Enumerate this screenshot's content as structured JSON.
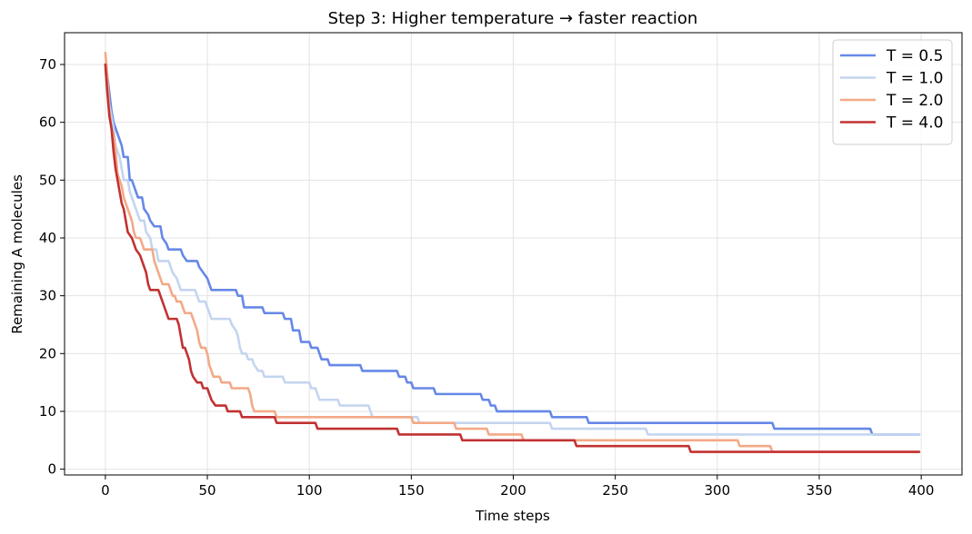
{
  "chart_data": {
    "type": "line",
    "title": "Step 3: Higher temperature → faster reaction",
    "xlabel": "Time steps",
    "ylabel": "Remaining A molecules",
    "xlim": [
      -20,
      420
    ],
    "ylim": [
      -1,
      75.5
    ],
    "xticks": [
      0,
      50,
      100,
      150,
      200,
      250,
      300,
      350,
      400
    ],
    "yticks": [
      0,
      10,
      20,
      30,
      40,
      50,
      60,
      70
    ],
    "grid": true,
    "legend_position": "top-right",
    "series": [
      {
        "name": "T = 0.5",
        "color": "#6688e8",
        "points": [
          [
            0,
            70
          ],
          [
            1,
            68
          ],
          [
            2,
            65
          ],
          [
            3,
            62
          ],
          [
            4,
            60
          ],
          [
            5,
            59
          ],
          [
            6,
            58
          ],
          [
            7,
            57
          ],
          [
            8,
            56
          ],
          [
            9,
            54
          ],
          [
            11,
            54
          ],
          [
            12,
            50
          ],
          [
            13,
            50
          ],
          [
            14,
            49
          ],
          [
            15,
            48
          ],
          [
            16,
            47
          ],
          [
            18,
            47
          ],
          [
            19,
            45
          ],
          [
            21,
            44
          ],
          [
            22,
            43
          ],
          [
            24,
            42
          ],
          [
            27,
            42
          ],
          [
            28,
            40
          ],
          [
            30,
            39
          ],
          [
            31,
            38
          ],
          [
            37,
            38
          ],
          [
            38,
            37
          ],
          [
            40,
            36
          ],
          [
            45,
            36
          ],
          [
            46,
            35
          ],
          [
            48,
            34
          ],
          [
            50,
            33
          ],
          [
            51,
            32
          ],
          [
            52,
            31
          ],
          [
            64,
            31
          ],
          [
            65,
            30
          ],
          [
            67,
            30
          ],
          [
            68,
            28
          ],
          [
            77,
            28
          ],
          [
            78,
            27
          ],
          [
            87,
            27
          ],
          [
            88,
            26
          ],
          [
            91,
            26
          ],
          [
            92,
            24
          ],
          [
            95,
            24
          ],
          [
            96,
            22
          ],
          [
            100,
            22
          ],
          [
            101,
            21
          ],
          [
            104,
            21
          ],
          [
            105,
            20
          ],
          [
            106,
            19
          ],
          [
            109,
            19
          ],
          [
            110,
            18
          ],
          [
            125,
            18
          ],
          [
            126,
            17
          ],
          [
            143,
            17
          ],
          [
            144,
            16
          ],
          [
            147,
            16
          ],
          [
            148,
            15
          ],
          [
            150,
            15
          ],
          [
            151,
            14
          ],
          [
            161,
            14
          ],
          [
            162,
            13
          ],
          [
            184,
            13
          ],
          [
            185,
            12
          ],
          [
            188,
            12
          ],
          [
            189,
            11
          ],
          [
            191,
            11
          ],
          [
            192,
            10
          ],
          [
            218,
            10
          ],
          [
            219,
            9
          ],
          [
            236,
            9
          ],
          [
            237,
            8
          ],
          [
            327,
            8
          ],
          [
            328,
            7
          ],
          [
            375,
            7
          ],
          [
            376,
            6
          ],
          [
            399,
            6
          ]
        ]
      },
      {
        "name": "T = 1.0",
        "color": "#c4d5f0",
        "points": [
          [
            0,
            69
          ],
          [
            1,
            66
          ],
          [
            2,
            63
          ],
          [
            3,
            61
          ],
          [
            4,
            59
          ],
          [
            5,
            56
          ],
          [
            6,
            55
          ],
          [
            7,
            54
          ],
          [
            8,
            52
          ],
          [
            9,
            50
          ],
          [
            11,
            50
          ],
          [
            12,
            48
          ],
          [
            13,
            47
          ],
          [
            14,
            46
          ],
          [
            15,
            45
          ],
          [
            16,
            44
          ],
          [
            17,
            43
          ],
          [
            19,
            43
          ],
          [
            20,
            41
          ],
          [
            22,
            40
          ],
          [
            23,
            38
          ],
          [
            25,
            38
          ],
          [
            26,
            36
          ],
          [
            31,
            36
          ],
          [
            32,
            35
          ],
          [
            33,
            34
          ],
          [
            35,
            33
          ],
          [
            36,
            32
          ],
          [
            37,
            31
          ],
          [
            44,
            31
          ],
          [
            45,
            30
          ],
          [
            46,
            29
          ],
          [
            49,
            29
          ],
          [
            50,
            28
          ],
          [
            51,
            27
          ],
          [
            52,
            26
          ],
          [
            61,
            26
          ],
          [
            62,
            25
          ],
          [
            64,
            24
          ],
          [
            65,
            23
          ],
          [
            66,
            21
          ],
          [
            67,
            20
          ],
          [
            69,
            20
          ],
          [
            70,
            19
          ],
          [
            72,
            19
          ],
          [
            73,
            18
          ],
          [
            75,
            17
          ],
          [
            77,
            17
          ],
          [
            78,
            16
          ],
          [
            87,
            16
          ],
          [
            88,
            15
          ],
          [
            100,
            15
          ],
          [
            101,
            14
          ],
          [
            103,
            14
          ],
          [
            104,
            13
          ],
          [
            105,
            12
          ],
          [
            114,
            12
          ],
          [
            115,
            11
          ],
          [
            129,
            11
          ],
          [
            130,
            10
          ],
          [
            131,
            9
          ],
          [
            153,
            9
          ],
          [
            154,
            8
          ],
          [
            218,
            8
          ],
          [
            219,
            7
          ],
          [
            265,
            7
          ],
          [
            266,
            6
          ],
          [
            399,
            6
          ]
        ]
      },
      {
        "name": "T = 2.0",
        "color": "#f3a987",
        "points": [
          [
            0,
            72
          ],
          [
            1,
            68
          ],
          [
            2,
            62
          ],
          [
            3,
            59
          ],
          [
            4,
            58
          ],
          [
            5,
            55
          ],
          [
            6,
            51
          ],
          [
            8,
            49
          ],
          [
            9,
            47
          ],
          [
            10,
            46
          ],
          [
            11,
            45
          ],
          [
            12,
            44
          ],
          [
            13,
            43
          ],
          [
            14,
            41
          ],
          [
            15,
            40
          ],
          [
            17,
            40
          ],
          [
            18,
            39
          ],
          [
            19,
            38
          ],
          [
            23,
            38
          ],
          [
            24,
            36
          ],
          [
            26,
            34
          ],
          [
            27,
            33
          ],
          [
            28,
            32
          ],
          [
            31,
            32
          ],
          [
            32,
            31
          ],
          [
            33,
            30
          ],
          [
            34,
            30
          ],
          [
            35,
            29
          ],
          [
            37,
            29
          ],
          [
            38,
            28
          ],
          [
            39,
            27
          ],
          [
            42,
            27
          ],
          [
            43,
            26
          ],
          [
            45,
            24
          ],
          [
            46,
            22
          ],
          [
            47,
            21
          ],
          [
            49,
            21
          ],
          [
            50,
            20
          ],
          [
            51,
            18
          ],
          [
            52,
            17
          ],
          [
            53,
            16
          ],
          [
            56,
            16
          ],
          [
            57,
            15
          ],
          [
            61,
            15
          ],
          [
            62,
            14
          ],
          [
            70,
            14
          ],
          [
            71,
            13
          ],
          [
            72,
            11
          ],
          [
            73,
            10
          ],
          [
            83,
            10
          ],
          [
            84,
            9
          ],
          [
            150,
            9
          ],
          [
            151,
            8
          ],
          [
            171,
            8
          ],
          [
            172,
            7
          ],
          [
            187,
            7
          ],
          [
            188,
            6
          ],
          [
            204,
            6
          ],
          [
            205,
            5
          ],
          [
            310,
            5
          ],
          [
            311,
            4
          ],
          [
            326,
            4
          ],
          [
            327,
            3
          ],
          [
            399,
            3
          ]
        ]
      },
      {
        "name": "T = 4.0",
        "color": "#c23232",
        "points": [
          [
            0,
            70
          ],
          [
            1,
            65
          ],
          [
            2,
            61
          ],
          [
            3,
            59
          ],
          [
            4,
            55
          ],
          [
            5,
            52
          ],
          [
            6,
            50
          ],
          [
            7,
            48
          ],
          [
            8,
            46
          ],
          [
            9,
            45
          ],
          [
            10,
            43
          ],
          [
            11,
            41
          ],
          [
            13,
            40
          ],
          [
            15,
            38
          ],
          [
            17,
            37
          ],
          [
            19,
            35
          ],
          [
            20,
            34
          ],
          [
            21,
            32
          ],
          [
            22,
            31
          ],
          [
            26,
            31
          ],
          [
            27,
            30
          ],
          [
            29,
            28
          ],
          [
            30,
            27
          ],
          [
            31,
            26
          ],
          [
            35,
            26
          ],
          [
            36,
            25
          ],
          [
            37,
            23
          ],
          [
            38,
            21
          ],
          [
            39,
            21
          ],
          [
            40,
            20
          ],
          [
            41,
            19
          ],
          [
            42,
            17
          ],
          [
            43,
            16
          ],
          [
            45,
            15
          ],
          [
            47,
            15
          ],
          [
            48,
            14
          ],
          [
            50,
            14
          ],
          [
            51,
            13
          ],
          [
            52,
            12
          ],
          [
            54,
            11
          ],
          [
            59,
            11
          ],
          [
            60,
            10
          ],
          [
            66,
            10
          ],
          [
            67,
            9
          ],
          [
            83,
            9
          ],
          [
            84,
            8
          ],
          [
            103,
            8
          ],
          [
            104,
            7
          ],
          [
            143,
            7
          ],
          [
            144,
            6
          ],
          [
            174,
            6
          ],
          [
            175,
            5
          ],
          [
            230,
            5
          ],
          [
            231,
            4
          ],
          [
            286,
            4
          ],
          [
            287,
            3
          ],
          [
            399,
            3
          ]
        ]
      }
    ]
  }
}
